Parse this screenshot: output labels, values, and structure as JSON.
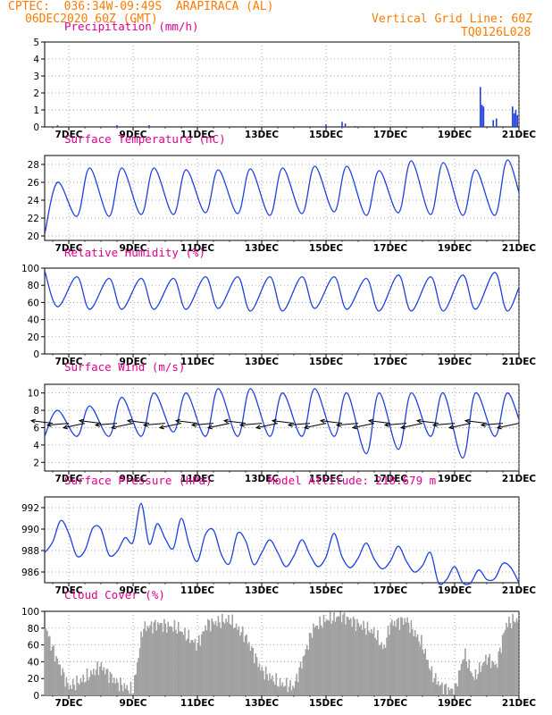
{
  "header": {
    "line1_left": "CPTEC:  036:34W-09:49S  ARAPIRACA (AL)",
    "line2_left": "06DEC2020 60Z (GMT)",
    "line1_right": "Vertical Grid Line: 60Z",
    "line2_right": "TQ0126L028"
  },
  "colors": {
    "header": "#ff7a00",
    "title": "#e0008c",
    "line": "#2040e0",
    "cloud": "#a0a0a0",
    "wind_arrow": "#000000",
    "grid": "#808080"
  },
  "chart_data": [
    {
      "id": "precip",
      "type": "bar",
      "title": "Precipitation (mm/h)",
      "xlabel": "",
      "ylabel": "",
      "x_ticks": [
        "7DEC",
        "9DEC",
        "11DEC",
        "13DEC",
        "15DEC",
        "17DEC",
        "19DEC",
        "21DEC"
      ],
      "x_range_days": [
        6.25,
        21.0
      ],
      "ylim": [
        0,
        5
      ],
      "y_ticks": [
        0,
        1,
        2,
        3,
        4,
        5
      ],
      "grid": "dotted",
      "points": [
        [
          6.65,
          0.1
        ],
        [
          8.5,
          0.1
        ],
        [
          9.5,
          0.1
        ],
        [
          15.0,
          0.15
        ],
        [
          15.5,
          0.3
        ],
        [
          15.6,
          0.2
        ],
        [
          15.9,
          0.05
        ],
        [
          19.8,
          2.35
        ],
        [
          19.85,
          1.3
        ],
        [
          19.9,
          1.2
        ],
        [
          20.2,
          0.4
        ],
        [
          20.3,
          0.5
        ],
        [
          20.8,
          1.2
        ],
        [
          20.85,
          0.8
        ],
        [
          20.9,
          1.0
        ],
        [
          20.95,
          0.7
        ]
      ]
    },
    {
      "id": "temp",
      "type": "line",
      "title": "Surface Temperature (nC)",
      "xlabel": "",
      "ylabel": "",
      "x_ticks": [
        "7DEC",
        "9DEC",
        "11DEC",
        "13DEC",
        "15DEC",
        "17DEC",
        "19DEC",
        "21DEC"
      ],
      "ylim": [
        19.5,
        29
      ],
      "y_ticks": [
        20,
        22,
        24,
        26,
        28
      ],
      "grid": "dotted",
      "daily": {
        "start_day": 6.25,
        "min_phase": 0.25,
        "max_phase": 0.65,
        "min_values": [
          20.2,
          22.2,
          22.2,
          22.4,
          22.4,
          22.6,
          22.5,
          22.3,
          22.5,
          22.7,
          22.3,
          22.6,
          22.4,
          22.3,
          22.3,
          22.5
        ],
        "max_values": [
          26.0,
          27.6,
          27.6,
          27.6,
          27.4,
          27.4,
          27.5,
          27.6,
          27.8,
          27.8,
          27.3,
          28.4,
          28.2,
          27.4,
          28.5,
          28.3
        ]
      }
    },
    {
      "id": "rh",
      "type": "line",
      "title": "Relative Humidity (%)",
      "xlabel": "",
      "ylabel": "",
      "x_ticks": [
        "7DEC",
        "9DEC",
        "11DEC",
        "13DEC",
        "15DEC",
        "17DEC",
        "19DEC",
        "21DEC"
      ],
      "ylim": [
        0,
        100
      ],
      "y_ticks": [
        0,
        20,
        40,
        60,
        80,
        100
      ],
      "grid": "dotted",
      "daily": {
        "start_day": 6.25,
        "min_phase": 0.65,
        "max_phase": 0.25,
        "min_values": [
          55,
          52,
          52,
          52,
          52,
          53,
          50,
          50,
          53,
          52,
          50,
          50,
          50,
          52,
          50,
          50
        ],
        "max_values": [
          97,
          90,
          88,
          88,
          88,
          90,
          90,
          90,
          90,
          90,
          88,
          92,
          90,
          92,
          95,
          95
        ]
      }
    },
    {
      "id": "wind",
      "type": "line",
      "title": "Surface Wind (m/s)",
      "xlabel": "",
      "ylabel": "",
      "x_ticks": [
        "7DEC",
        "9DEC",
        "11DEC",
        "13DEC",
        "15DEC",
        "17DEC",
        "19DEC",
        "21DEC"
      ],
      "ylim": [
        1,
        11
      ],
      "y_ticks": [
        2,
        4,
        6,
        8,
        10
      ],
      "grid": "dotted",
      "daily": {
        "start_day": 6.25,
        "min_phase": 0.25,
        "max_phase": 0.65,
        "min_values": [
          5,
          5,
          5,
          5,
          5.5,
          5,
          5,
          5,
          5,
          5,
          3,
          3.5,
          5,
          2.5,
          5,
          5
        ],
        "max_values": [
          8,
          8.5,
          9.5,
          10,
          10,
          10.5,
          10.5,
          10,
          10.5,
          10,
          10,
          10,
          10,
          10,
          10,
          10
        ]
      },
      "arrows_x_days": [
        6.5,
        7.0,
        7.5,
        8.0,
        8.5,
        9.0,
        9.5,
        10.0,
        10.5,
        11.0,
        11.5,
        12.0,
        12.5,
        13.0,
        13.5,
        14.0,
        14.5,
        15.0,
        15.5,
        16.0,
        16.5,
        17.0,
        17.5,
        18.0,
        18.5,
        19.0,
        19.5,
        20.0,
        20.5,
        21.0
      ],
      "arrow_axis_value": 6.5
    },
    {
      "id": "pressure",
      "type": "line",
      "title": "Surface Pressure (hPa)",
      "annotation": "Model Altitude: 218.679 m",
      "xlabel": "",
      "ylabel": "",
      "x_ticks": [
        "7DEC",
        "9DEC",
        "11DEC",
        "13DEC",
        "15DEC",
        "17DEC",
        "19DEC",
        "21DEC"
      ],
      "ylim": [
        985.0,
        993.0
      ],
      "y_ticks": [
        986,
        988,
        990,
        992
      ],
      "grid": "dotted",
      "points": [
        [
          6.25,
          987.8
        ],
        [
          6.5,
          988.8
        ],
        [
          6.75,
          990.8
        ],
        [
          7.0,
          989.6
        ],
        [
          7.25,
          987.5
        ],
        [
          7.5,
          988.0
        ],
        [
          7.75,
          990.1
        ],
        [
          8.0,
          990.0
        ],
        [
          8.25,
          987.6
        ],
        [
          8.5,
          987.9
        ],
        [
          8.75,
          989.2
        ],
        [
          9.0,
          988.8
        ],
        [
          9.25,
          992.4
        ],
        [
          9.5,
          988.6
        ],
        [
          9.75,
          990.5
        ],
        [
          10.0,
          989.1
        ],
        [
          10.25,
          988.2
        ],
        [
          10.5,
          991.0
        ],
        [
          10.75,
          988.5
        ],
        [
          11.0,
          987.0
        ],
        [
          11.25,
          989.5
        ],
        [
          11.5,
          989.9
        ],
        [
          11.75,
          987.6
        ],
        [
          12.0,
          986.8
        ],
        [
          12.25,
          989.6
        ],
        [
          12.5,
          988.9
        ],
        [
          12.75,
          986.7
        ],
        [
          13.0,
          987.8
        ],
        [
          13.25,
          989.0
        ],
        [
          13.5,
          987.8
        ],
        [
          13.75,
          986.5
        ],
        [
          14.0,
          987.5
        ],
        [
          14.25,
          989.0
        ],
        [
          14.5,
          987.6
        ],
        [
          14.75,
          986.5
        ],
        [
          15.0,
          987.4
        ],
        [
          15.25,
          989.6
        ],
        [
          15.5,
          987.4
        ],
        [
          15.75,
          986.4
        ],
        [
          16.0,
          987.3
        ],
        [
          16.25,
          988.7
        ],
        [
          16.5,
          987.2
        ],
        [
          16.75,
          986.3
        ],
        [
          17.0,
          987.0
        ],
        [
          17.25,
          988.4
        ],
        [
          17.5,
          987.0
        ],
        [
          17.75,
          986.0
        ],
        [
          18.0,
          986.6
        ],
        [
          18.25,
          987.8
        ],
        [
          18.5,
          985.0
        ],
        [
          18.75,
          985.3
        ],
        [
          19.0,
          986.5
        ],
        [
          19.25,
          985.0
        ],
        [
          19.5,
          985.0
        ],
        [
          19.75,
          986.2
        ],
        [
          20.0,
          985.3
        ],
        [
          20.25,
          985.4
        ],
        [
          20.5,
          986.8
        ],
        [
          20.75,
          986.4
        ],
        [
          21.0,
          985.0
        ]
      ]
    },
    {
      "id": "cloud",
      "type": "bar",
      "title": "Cloud Cover (%)",
      "xlabel": "",
      "ylabel": "",
      "x_ticks": [
        "7DEC",
        "9DEC",
        "11DEC",
        "13DEC",
        "15DEC",
        "17DEC",
        "19DEC",
        "21DEC"
      ],
      "ylim": [
        0,
        100
      ],
      "y_ticks": [
        0,
        20,
        40,
        60,
        80,
        100
      ],
      "grid": "dotted",
      "segments": [
        [
          6.25,
          85
        ],
        [
          6.5,
          55
        ],
        [
          7.0,
          10
        ],
        [
          7.5,
          20
        ],
        [
          8.0,
          35
        ],
        [
          8.5,
          15
        ],
        [
          9.0,
          5
        ],
        [
          9.3,
          80
        ],
        [
          9.8,
          85
        ],
        [
          10.4,
          80
        ],
        [
          11.0,
          60
        ],
        [
          11.3,
          85
        ],
        [
          12.0,
          90
        ],
        [
          12.5,
          70
        ],
        [
          13.0,
          30
        ],
        [
          13.5,
          15
        ],
        [
          14.0,
          10
        ],
        [
          14.3,
          45
        ],
        [
          14.6,
          80
        ],
        [
          15.0,
          90
        ],
        [
          15.5,
          95
        ],
        [
          16.0,
          85
        ],
        [
          16.5,
          75
        ],
        [
          16.8,
          55
        ],
        [
          17.0,
          85
        ],
        [
          17.5,
          90
        ],
        [
          18.0,
          60
        ],
        [
          18.3,
          25
        ],
        [
          18.6,
          10
        ],
        [
          19.0,
          5
        ],
        [
          19.3,
          50
        ],
        [
          19.6,
          20
        ],
        [
          20.0,
          45
        ],
        [
          20.3,
          35
        ],
        [
          20.6,
          85
        ],
        [
          20.9,
          90
        ],
        [
          21.0,
          90
        ]
      ]
    }
  ]
}
